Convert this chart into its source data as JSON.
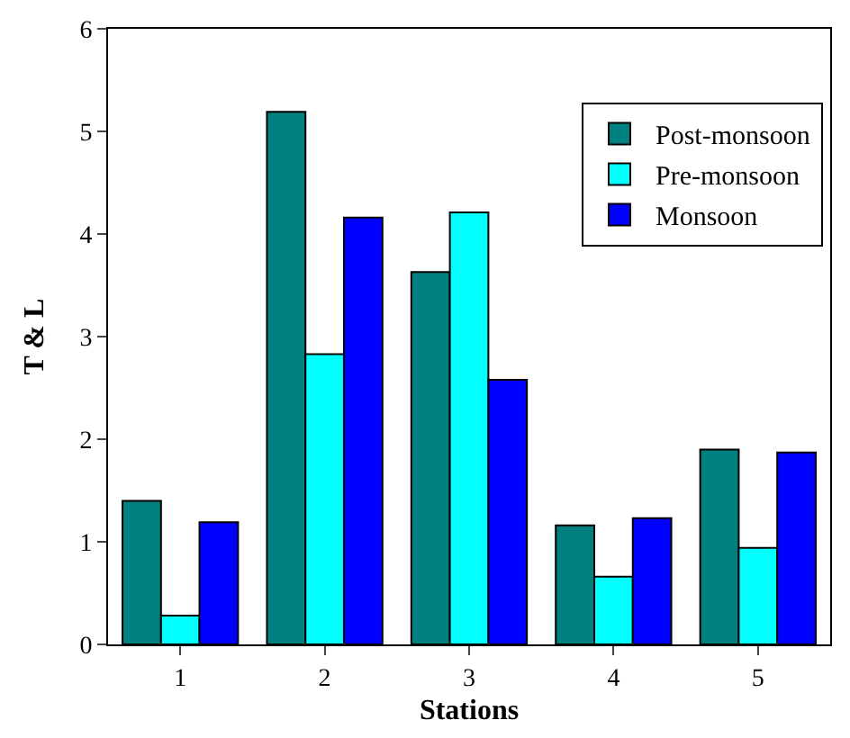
{
  "chart_data": {
    "type": "bar",
    "xlabel": "Stations",
    "ylabel": "T & L",
    "categories": [
      "1",
      "2",
      "3",
      "4",
      "5"
    ],
    "series": [
      {
        "name": "Post-monsoon",
        "color": "#008080",
        "values": [
          1.4,
          5.19,
          3.63,
          1.16,
          1.9
        ]
      },
      {
        "name": "Pre-monsoon",
        "color": "#00ffff",
        "values": [
          0.28,
          2.83,
          4.21,
          0.66,
          0.94
        ]
      },
      {
        "name": "Monsoon",
        "color": "#0000ff",
        "values": [
          1.19,
          4.16,
          2.58,
          1.23,
          1.87
        ]
      }
    ],
    "ylim": [
      0,
      6
    ],
    "yticks": [
      0,
      1,
      2,
      3,
      4,
      5,
      6
    ],
    "legend": "top right"
  }
}
